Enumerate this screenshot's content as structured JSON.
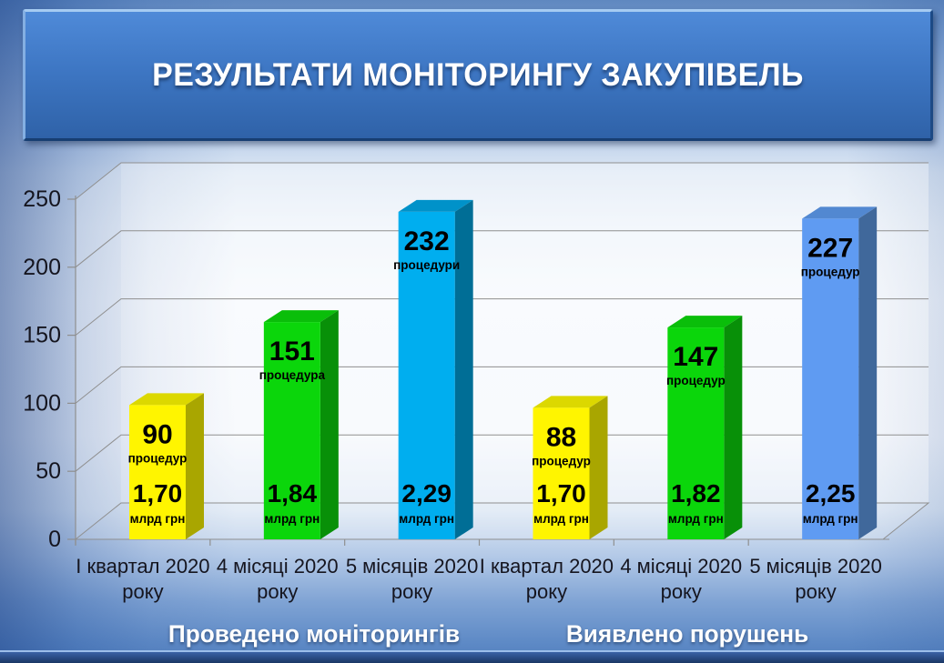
{
  "slide": {
    "title": "РЕЗУЛЬТАТИ МОНІТОРИНГУ ЗАКУПІВЕЛЬ",
    "group_labels": [
      "Проведено моніторингів",
      "Виявлено порушень"
    ]
  },
  "colors": {
    "title_box": "#3E77C4",
    "bar_palette": {
      "yellow": {
        "front": "#FFF500",
        "side": "#A9A600",
        "top": "#DCD800"
      },
      "green": {
        "front": "#0BD60B",
        "side": "#089008",
        "top": "#0ABE0A"
      },
      "blue": {
        "front": "#00AEEF",
        "side": "#006E96",
        "top": "#0092C9"
      },
      "lightblue": {
        "front": "#5F9BF2",
        "side": "#40689B",
        "top": "#5288D1"
      }
    },
    "gridline": "#8F8F8F",
    "axis_text": "#15151F"
  },
  "chart_data": {
    "type": "bar",
    "title": "РЕЗУЛЬТАТИ МОНІТОРИНГУ ЗАКУПІВЕЛЬ",
    "xlabel": "",
    "ylabel": "",
    "ylim": [
      0,
      250
    ],
    "yticks": [
      0,
      50,
      100,
      150,
      200,
      250
    ],
    "grid": true,
    "legend": false,
    "groups": [
      "Проведено моніторингів",
      "Виявлено порушень"
    ],
    "categories": [
      "І квартал 2020 року",
      "4 місяці 2020 року",
      "5 місяців 2020 року",
      "І квартал 2020 року",
      "4 місяці 2020 року",
      "5 місяців 2020 року"
    ],
    "bars": [
      {
        "group": "Проведено моніторингів",
        "category": "І квартал 2020 року",
        "value": 90,
        "count_label": "90",
        "count_unit": "процедур",
        "amount": 1.7,
        "amount_label": "1,70",
        "amount_unit": "млрд грн",
        "color": "yellow"
      },
      {
        "group": "Проведено моніторингів",
        "category": "4 місяці 2020 року",
        "value": 151,
        "count_label": "151",
        "count_unit": "процедура",
        "amount": 1.84,
        "amount_label": "1,84",
        "amount_unit": "млрд грн",
        "color": "green"
      },
      {
        "group": "Проведено моніторингів",
        "category": "5 місяців 2020 року",
        "value": 232,
        "count_label": "232",
        "count_unit": "процедури",
        "amount": 2.29,
        "amount_label": "2,29",
        "amount_unit": "млрд грн",
        "color": "blue"
      },
      {
        "group": "Виявлено порушень",
        "category": "І квартал 2020 року",
        "value": 88,
        "count_label": "88",
        "count_unit": "процедур",
        "amount": 1.7,
        "amount_label": "1,70",
        "amount_unit": "млрд грн",
        "color": "yellow"
      },
      {
        "group": "Виявлено порушень",
        "category": "4 місяці 2020 року",
        "value": 147,
        "count_label": "147",
        "count_unit": "процедур",
        "amount": 1.82,
        "amount_label": "1,82",
        "amount_unit": "млрд грн",
        "color": "green"
      },
      {
        "group": "Виявлено порушень",
        "category": "5 місяців 2020 року",
        "value": 227,
        "count_label": "227",
        "count_unit": "процедур",
        "amount": 2.25,
        "amount_label": "2,25",
        "amount_unit": "млрд грн",
        "color": "lightblue"
      }
    ]
  }
}
